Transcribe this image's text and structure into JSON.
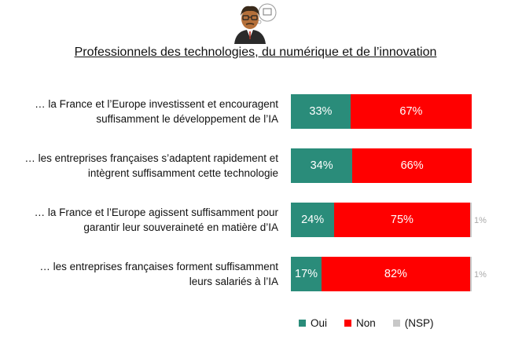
{
  "chart_data": {
    "type": "bar",
    "orientation": "horizontal-stacked",
    "title": "Professionnels des technologies, du numérique et de l’innovation",
    "categories": [
      "… la France et l’Europe investissent et encouragent suffisamment le développement de l’IA",
      "… les entreprises françaises s’adaptent rapidement et intègrent suffisamment cette technologie",
      "… la France et l’Europe agissent suffisamment pour garantir leur souveraineté en matière d’IA",
      "… les entreprises françaises forment suffisamment leurs salariés à l’IA"
    ],
    "category_lines": [
      [
        "… la France et l’Europe investissent et encouragent",
        "suffisamment le développement de l’IA"
      ],
      [
        "… les entreprises françaises s’adaptent rapidement et",
        "intègrent suffisamment cette technologie"
      ],
      [
        "… la France et l’Europe agissent suffisamment pour",
        "garantir leur souveraineté en matière d’IA"
      ],
      [
        "… les entreprises françaises forment suffisamment",
        "leurs salariés à l’IA"
      ]
    ],
    "series": [
      {
        "name": "Oui",
        "color": "#2a8c7a",
        "values": [
          33,
          34,
          24,
          17
        ],
        "labels": [
          "33%",
          "34%",
          "24%",
          "17%"
        ]
      },
      {
        "name": "Non",
        "color": "#ff0000",
        "values": [
          67,
          66,
          75,
          82
        ],
        "labels": [
          "67%",
          "66%",
          "75%",
          "82%"
        ]
      },
      {
        "name": "(NSP)",
        "color": "#c8c8c8",
        "values": [
          0,
          0,
          1,
          1
        ],
        "labels": [
          "",
          "",
          "1%",
          "1%"
        ]
      }
    ],
    "xlim": [
      0,
      100
    ],
    "legend_position": "bottom-right",
    "grid": false
  }
}
